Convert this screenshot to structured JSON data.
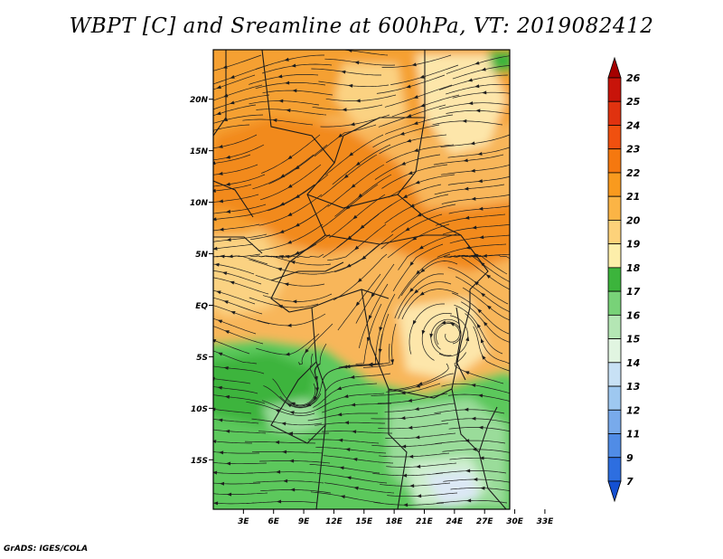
{
  "title": "WBPT [C] and Sreamline at 600hPa, VT: 2019082412",
  "credit": "GrADS: IGES/COLA",
  "map": {
    "lat_labels": [
      "20N",
      "15N",
      "10N",
      "5N",
      "EQ",
      "5S",
      "10S",
      "15S"
    ],
    "lon_labels": [
      "3E",
      "6E",
      "9E",
      "12E",
      "15E",
      "18E",
      "21E",
      "24E",
      "27E",
      "30E",
      "33E"
    ],
    "lat_values": [
      20,
      15,
      10,
      5,
      0,
      -5,
      -10,
      -15
    ],
    "lon_values": [
      3,
      6,
      9,
      12,
      15,
      18,
      21,
      24,
      27,
      30,
      33
    ],
    "lat_range": [
      -19.8,
      24.8
    ],
    "lon_range": [
      0,
      29.5
    ]
  },
  "colorbar": {
    "labels": [
      "26",
      "25",
      "24",
      "23",
      "22",
      "21",
      "20",
      "19",
      "18",
      "17",
      "16",
      "15",
      "14",
      "13",
      "12",
      "11",
      "9",
      "7"
    ],
    "colors": [
      "#a50000",
      "#c8140a",
      "#e0320f",
      "#f0500f",
      "#f5780f",
      "#f99a1e",
      "#fbb445",
      "#fdd27a",
      "#fdeeaa",
      "#3cb43c",
      "#78d278",
      "#b4e6b4",
      "#e1f5e1",
      "#c8e1f5",
      "#9ec8f0",
      "#78aaeb",
      "#508ce6",
      "#2d6ee0",
      "#1450d2"
    ]
  },
  "colors": {
    "orange_dark": "#f28a1e",
    "orange": "#f5a032",
    "orange_light": "#f8b65a",
    "yellow": "#fbd282",
    "yellow_pale": "#fde6aa",
    "green_dark": "#3cb43c",
    "green": "#5cc85c",
    "green_light": "#9adc9a",
    "green_pale": "#cdeecd",
    "blue_pale": "#dce8f5",
    "streamline": "#1e1e1e"
  }
}
